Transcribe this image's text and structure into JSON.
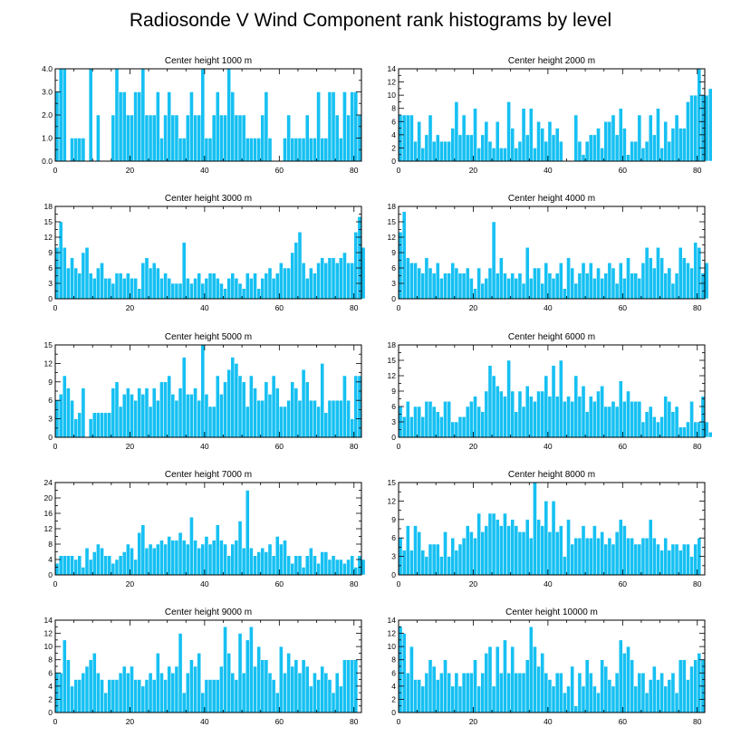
{
  "figure_title": "Radiosonde V Wind Component rank histograms by level",
  "colors": {
    "bar": "#16c0f2",
    "bar_edge": "#ffffff",
    "axis": "#000000",
    "background": "#ffffff"
  },
  "chart_data": [
    {
      "type": "bar",
      "title": "Center height 1000 m",
      "xlim": [
        0,
        82
      ],
      "ylim": [
        0,
        4
      ],
      "xticks": [
        0,
        20,
        40,
        60,
        80
      ],
      "yticks": [
        0.0,
        1.0,
        2.0,
        3.0,
        4.0
      ],
      "ytick_labels": [
        "0.0",
        "1.0",
        "2.0",
        "3.0",
        "4.0"
      ],
      "values": [
        3,
        4,
        4,
        0,
        1,
        1,
        1,
        1,
        0,
        4,
        0,
        2,
        0,
        0,
        0,
        2,
        4,
        3,
        3,
        2,
        2,
        3,
        3,
        4,
        2,
        2,
        2,
        3,
        1,
        2,
        3,
        2,
        2,
        1,
        1,
        2,
        3,
        2,
        2,
        4,
        1,
        1,
        2,
        3,
        2,
        2,
        4,
        3,
        2,
        2,
        2,
        1,
        1,
        1,
        1,
        2,
        3,
        1,
        0,
        0,
        0,
        1,
        2,
        1,
        1,
        1,
        1,
        2,
        1,
        1,
        3,
        1,
        1,
        3,
        3,
        2,
        1,
        3,
        2,
        3,
        3,
        2
      ]
    },
    {
      "type": "bar",
      "title": "Center height 2000 m",
      "xlim": [
        0,
        82
      ],
      "ylim": [
        0,
        14
      ],
      "xticks": [
        0,
        20,
        40,
        60,
        80
      ],
      "yticks": [
        0,
        2,
        4,
        6,
        8,
        10,
        12,
        14
      ],
      "ytick_labels": [
        "0",
        "2",
        "4",
        "6",
        "8",
        "10",
        "12",
        "14"
      ],
      "values": [
        7,
        7,
        7,
        7,
        3,
        6,
        2,
        4,
        7,
        3,
        4,
        3,
        3,
        3,
        5,
        9,
        4,
        7,
        4,
        4,
        8,
        2,
        4,
        6,
        3,
        2,
        6,
        2,
        2,
        9,
        5,
        2,
        3,
        8,
        4,
        8,
        2,
        6,
        5,
        3,
        6,
        4,
        5,
        3,
        0,
        0,
        0,
        7,
        3,
        1,
        3,
        4,
        4,
        5,
        2,
        6,
        6,
        7,
        4,
        8,
        5,
        1,
        3,
        3,
        7,
        2,
        3,
        7,
        4,
        8,
        2,
        6,
        3,
        5,
        7,
        5,
        5,
        9,
        10,
        10,
        14,
        10,
        10,
        11
      ]
    },
    {
      "type": "bar",
      "title": "Center height 3000 m",
      "xlim": [
        0,
        82
      ],
      "ylim": [
        0,
        18
      ],
      "xticks": [
        0,
        20,
        40,
        60,
        80
      ],
      "yticks": [
        0,
        3,
        6,
        9,
        12,
        15,
        18
      ],
      "ytick_labels": [
        "0",
        "3",
        "6",
        "9",
        "12",
        "15",
        "18"
      ],
      "values": [
        10,
        15,
        10,
        6,
        8,
        6,
        5,
        9,
        10,
        5,
        4,
        6,
        7,
        4,
        4,
        3,
        5,
        5,
        4,
        5,
        4,
        4,
        2,
        7,
        8,
        6,
        7,
        6,
        4,
        5,
        4,
        3,
        3,
        3,
        11,
        4,
        3,
        4,
        5,
        3,
        4,
        5,
        5,
        4,
        3,
        2,
        4,
        5,
        4,
        3,
        2,
        5,
        4,
        5,
        2,
        4,
        5,
        6,
        4,
        5,
        7,
        6,
        6,
        9,
        11,
        13,
        7,
        4,
        6,
        5,
        7,
        8,
        7,
        8,
        8,
        7,
        8,
        9,
        7,
        7,
        13,
        16,
        10
      ]
    },
    {
      "type": "bar",
      "title": "Center height 4000 m",
      "xlim": [
        0,
        82
      ],
      "ylim": [
        0,
        18
      ],
      "xticks": [
        0,
        20,
        40,
        60,
        80
      ],
      "yticks": [
        0,
        3,
        6,
        9,
        12,
        15,
        18
      ],
      "ytick_labels": [
        "0",
        "3",
        "6",
        "9",
        "12",
        "15",
        "18"
      ],
      "values": [
        13,
        17,
        8,
        7,
        7,
        6,
        5,
        8,
        6,
        5,
        7,
        4,
        5,
        5,
        7,
        6,
        5,
        5,
        6,
        4,
        2,
        6,
        3,
        4,
        6,
        15,
        5,
        8,
        5,
        4,
        5,
        4,
        5,
        3,
        10,
        4,
        6,
        6,
        3,
        7,
        5,
        4,
        5,
        7,
        2,
        8,
        6,
        3,
        5,
        7,
        5,
        7,
        4,
        6,
        4,
        5,
        7,
        6,
        3,
        7,
        4,
        8,
        5,
        5,
        4,
        7,
        10,
        8,
        6,
        10,
        8,
        5,
        6,
        3,
        5,
        10,
        8,
        7,
        6,
        11,
        10,
        5,
        7
      ]
    },
    {
      "type": "bar",
      "title": "Center height 5000 m",
      "xlim": [
        0,
        82
      ],
      "ylim": [
        0,
        15
      ],
      "xticks": [
        0,
        20,
        40,
        60,
        80
      ],
      "yticks": [
        0,
        3,
        6,
        9,
        12,
        15
      ],
      "ytick_labels": [
        "0",
        "3",
        "6",
        "9",
        "12",
        "15"
      ],
      "values": [
        6,
        7,
        10,
        8,
        6,
        3,
        4,
        8,
        0,
        3,
        4,
        4,
        4,
        4,
        4,
        8,
        9,
        5,
        7,
        8,
        7,
        6,
        8,
        7,
        8,
        5,
        8,
        6,
        9,
        9,
        10,
        7,
        6,
        8,
        13,
        7,
        7,
        8,
        6,
        15,
        7,
        5,
        5,
        10,
        7,
        9,
        11,
        13,
        12,
        10,
        9,
        5,
        10,
        8,
        6,
        6,
        9,
        7,
        10,
        8,
        5,
        5,
        6,
        9,
        8,
        6,
        11,
        9,
        6,
        6,
        5,
        12,
        4,
        6,
        6,
        6,
        6,
        10,
        6,
        3,
        10,
        10
      ]
    },
    {
      "type": "bar",
      "title": "Center height 6000 m",
      "xlim": [
        0,
        82
      ],
      "ylim": [
        0,
        18
      ],
      "xticks": [
        0,
        20,
        40,
        60,
        80
      ],
      "yticks": [
        0,
        3,
        6,
        9,
        12,
        15,
        18
      ],
      "ytick_labels": [
        "0",
        "3",
        "6",
        "9",
        "12",
        "15",
        "18"
      ],
      "values": [
        6,
        4,
        7,
        4,
        6,
        6,
        4,
        7,
        7,
        6,
        5,
        4,
        7,
        7,
        3,
        3,
        4,
        4,
        6,
        7,
        8,
        6,
        5,
        9,
        14,
        12,
        10,
        9,
        8,
        15,
        9,
        5,
        9,
        6,
        10,
        8,
        7,
        9,
        9,
        12,
        8,
        14,
        8,
        15,
        7,
        8,
        7,
        12,
        8,
        10,
        5,
        8,
        7,
        9,
        10,
        6,
        6,
        7,
        6,
        11,
        7,
        9,
        7,
        7,
        7,
        3,
        5,
        6,
        4,
        3,
        4,
        8,
        7,
        5,
        6,
        2,
        2,
        3,
        7,
        3,
        3,
        8,
        3,
        1
      ]
    },
    {
      "type": "bar",
      "title": "Center height 7000 m",
      "xlim": [
        0,
        82
      ],
      "ylim": [
        0,
        24
      ],
      "xticks": [
        0,
        20,
        40,
        60,
        80
      ],
      "yticks": [
        0,
        4,
        8,
        12,
        16,
        20,
        24
      ],
      "ytick_labels": [
        "0",
        "4",
        "8",
        "12",
        "16",
        "20",
        "24"
      ],
      "values": [
        3,
        5,
        5,
        5,
        5,
        4,
        5,
        2,
        7,
        4,
        6,
        8,
        7,
        5,
        5,
        3,
        4,
        5,
        6,
        8,
        7,
        4,
        11,
        13,
        7,
        8,
        7,
        8,
        9,
        8,
        10,
        9,
        9,
        11,
        9,
        8,
        15,
        9,
        7,
        8,
        10,
        8,
        9,
        13,
        9,
        8,
        5,
        8,
        9,
        14,
        7,
        22,
        7,
        5,
        6,
        7,
        6,
        8,
        5,
        10,
        8,
        9,
        5,
        3,
        5,
        5,
        2,
        5,
        7,
        5,
        3,
        6,
        6,
        4,
        5,
        4,
        4,
        3,
        4,
        5,
        2,
        5,
        4
      ]
    },
    {
      "type": "bar",
      "title": "Center height 8000 m",
      "xlim": [
        0,
        82
      ],
      "ylim": [
        0,
        15
      ],
      "xticks": [
        0,
        20,
        40,
        60,
        80
      ],
      "yticks": [
        0,
        3,
        6,
        9,
        12,
        15
      ],
      "ytick_labels": [
        "0",
        "3",
        "6",
        "9",
        "12",
        "15"
      ],
      "values": [
        6,
        4,
        8,
        4,
        8,
        7,
        4,
        3,
        5,
        5,
        5,
        3,
        7,
        3,
        6,
        4,
        5,
        6,
        8,
        7,
        6,
        10,
        7,
        8,
        10,
        10,
        9,
        8,
        10,
        8,
        9,
        8,
        7,
        7,
        9,
        6,
        15,
        9,
        8,
        12,
        7,
        12,
        7,
        8,
        3,
        9,
        5,
        6,
        6,
        8,
        6,
        6,
        8,
        6,
        7,
        5,
        6,
        5,
        7,
        9,
        8,
        6,
        6,
        5,
        5,
        6,
        6,
        9,
        6,
        5,
        4,
        6,
        4,
        5,
        5,
        4,
        5,
        5,
        3,
        5,
        6
      ]
    },
    {
      "type": "bar",
      "title": "Center height 9000 m",
      "xlim": [
        0,
        82
      ],
      "ylim": [
        0,
        14
      ],
      "xticks": [
        0,
        20,
        40,
        60,
        80
      ],
      "yticks": [
        0,
        2,
        4,
        6,
        8,
        10,
        12,
        14
      ],
      "ytick_labels": [
        "0",
        "2",
        "4",
        "6",
        "8",
        "10",
        "12",
        "14"
      ],
      "values": [
        6,
        6,
        11,
        8,
        4,
        5,
        5,
        6,
        7,
        8,
        9,
        6,
        5,
        3,
        5,
        5,
        5,
        6,
        7,
        6,
        7,
        5,
        5,
        4,
        5,
        6,
        5,
        9,
        6,
        5,
        7,
        6,
        7,
        12,
        3,
        6,
        8,
        7,
        9,
        3,
        5,
        5,
        5,
        5,
        7,
        13,
        9,
        6,
        5,
        12,
        6,
        11,
        13,
        7,
        10,
        8,
        8,
        6,
        5,
        3,
        10,
        6,
        9,
        7,
        8,
        6,
        8,
        7,
        4,
        6,
        5,
        7,
        6,
        5,
        3,
        6,
        4,
        8,
        8,
        8,
        8
      ]
    },
    {
      "type": "bar",
      "title": "Center height 10000 m",
      "xlim": [
        0,
        82
      ],
      "ylim": [
        0,
        14
      ],
      "xticks": [
        0,
        20,
        40,
        60,
        80
      ],
      "yticks": [
        0,
        2,
        4,
        6,
        8,
        10,
        12,
        14
      ],
      "ytick_labels": [
        "0",
        "2",
        "4",
        "6",
        "8",
        "10",
        "12",
        "14"
      ],
      "values": [
        13,
        12,
        6,
        10,
        5,
        5,
        4,
        6,
        8,
        7,
        5,
        6,
        8,
        6,
        4,
        6,
        4,
        6,
        6,
        6,
        8,
        4,
        6,
        9,
        10,
        4,
        10,
        6,
        11,
        6,
        10,
        6,
        6,
        6,
        8,
        13,
        10,
        7,
        9,
        6,
        5,
        4,
        6,
        6,
        3,
        4,
        7,
        1,
        6,
        4,
        8,
        6,
        4,
        3,
        8,
        7,
        5,
        4,
        6,
        11,
        9,
        10,
        8,
        4,
        6,
        6,
        3,
        5,
        7,
        5,
        6,
        4,
        5,
        6,
        3,
        8,
        8,
        5,
        7,
        8,
        9,
        8
      ]
    }
  ]
}
